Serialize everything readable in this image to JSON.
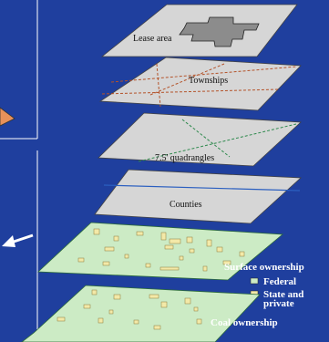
{
  "layers": {
    "lease_area": "Lease area",
    "townships": "Townships",
    "quadrangles": "7.5' quadrangles",
    "counties": "Counties"
  },
  "surface_ownership": {
    "title": "Surface ownership",
    "legend": [
      {
        "label": "Federal",
        "color": "#ccebc5"
      },
      {
        "label_line1": "State and",
        "label_line2": "private",
        "color": "#f3e9a8"
      }
    ]
  },
  "coal_ownership": {
    "title": "Coal ownership"
  },
  "colors": {
    "background": "#1f3f9e",
    "plate": "#d6d6d6",
    "federal_green": "#ccebc5",
    "state_private": "#f3e9a8",
    "lease_gray": "#8c8c8c",
    "township_line": "#b4532a",
    "quadrangle_line": "#2f8a4e",
    "county_line": "#2b5fc0",
    "arrow": "#ffffff",
    "orange_shape": "#e8915a"
  }
}
